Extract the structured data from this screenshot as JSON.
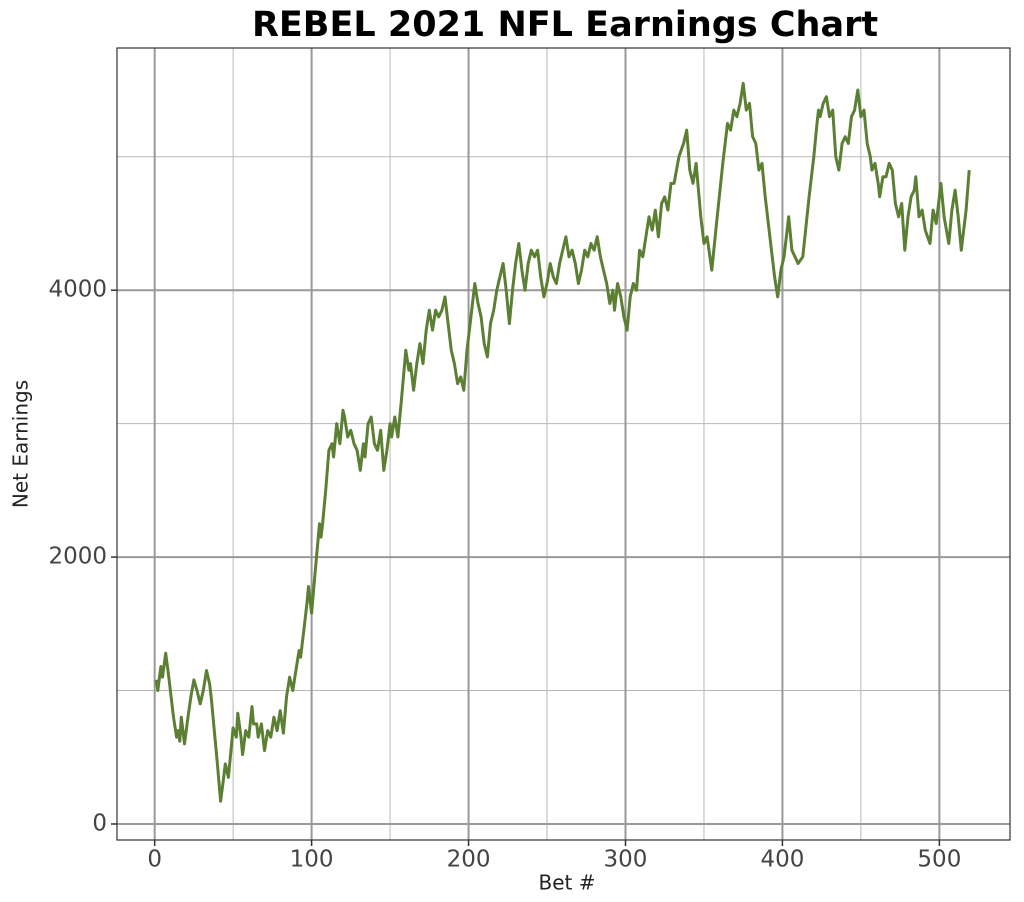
{
  "chart_data": {
    "type": "line",
    "title": "REBEL 2021 NFL Earnings Chart",
    "x_label": "Bet #",
    "y_label": "Net Earnings",
    "color": "#5b7f33",
    "grid": true,
    "xlim": [
      -24,
      545
    ],
    "ylim": [
      -120,
      5815
    ],
    "xticks": [
      0,
      100,
      200,
      300,
      400,
      500
    ],
    "yticks": [
      0,
      2000,
      4000
    ],
    "x_minor_grid": [
      50,
      150,
      250,
      350,
      450
    ],
    "y_minor_grid": [
      1000,
      3000,
      5000
    ],
    "x": [
      1,
      2,
      4,
      5,
      7,
      9,
      12,
      14,
      15,
      16,
      17,
      19,
      21,
      23,
      25,
      27,
      29,
      31,
      33,
      35,
      36,
      38,
      40,
      42,
      44,
      45,
      47,
      49,
      50,
      52,
      53,
      55,
      56,
      58,
      60,
      62,
      63,
      65,
      66,
      68,
      70,
      72,
      74,
      76,
      78,
      80,
      82,
      84,
      86,
      88,
      90,
      92,
      93,
      95,
      97,
      98,
      100,
      102,
      105,
      106,
      107,
      109,
      111,
      113,
      114,
      116,
      118,
      120,
      121,
      123,
      125,
      127,
      129,
      131,
      133,
      134,
      136,
      138,
      140,
      142,
      144,
      146,
      148,
      150,
      151,
      153,
      155,
      157,
      160,
      162,
      163,
      165,
      167,
      169,
      171,
      173,
      175,
      177,
      179,
      181,
      183,
      185,
      187,
      189,
      191,
      193,
      195,
      197,
      199,
      202,
      204,
      206,
      208,
      210,
      212,
      214,
      216,
      218,
      220,
      222,
      224,
      226,
      228,
      230,
      232,
      234,
      236,
      238,
      240,
      242,
      244,
      246,
      248,
      250,
      252,
      254,
      256,
      258,
      260,
      262,
      264,
      266,
      268,
      270,
      272,
      274,
      276,
      278,
      280,
      282,
      284,
      286,
      288,
      290,
      292,
      293,
      295,
      297,
      299,
      301,
      303,
      305,
      307,
      309,
      311,
      313,
      315,
      317,
      319,
      321,
      323,
      325,
      327,
      329,
      331,
      334,
      337,
      339,
      341,
      343,
      345,
      348,
      350,
      352,
      355,
      358,
      362,
      365,
      367,
      369,
      371,
      373,
      375,
      377,
      379,
      381,
      383,
      385,
      387,
      389,
      392,
      395,
      397,
      399,
      401,
      404,
      406,
      408,
      410,
      413,
      417,
      420,
      422,
      423,
      424,
      426,
      428,
      430,
      432,
      434,
      436,
      438,
      440,
      442,
      444,
      446,
      448,
      450,
      452,
      454,
      456,
      457,
      459,
      461,
      462,
      464,
      466,
      468,
      470,
      472,
      474,
      476,
      478,
      480,
      482,
      484,
      485,
      487,
      489,
      491,
      494,
      496,
      498,
      500,
      501,
      503,
      506,
      508,
      510,
      512,
      514,
      517,
      519
    ],
    "values": [
      1080,
      1000,
      1180,
      1100,
      1280,
      1100,
      800,
      650,
      700,
      620,
      800,
      600,
      780,
      950,
      1080,
      1000,
      900,
      1000,
      1150,
      1050,
      950,
      700,
      450,
      170,
      350,
      450,
      350,
      600,
      720,
      650,
      830,
      650,
      520,
      700,
      650,
      880,
      750,
      750,
      650,
      750,
      550,
      700,
      650,
      800,
      700,
      850,
      680,
      950,
      1100,
      1000,
      1150,
      1300,
      1250,
      1450,
      1650,
      1780,
      1580,
      1850,
      2250,
      2150,
      2250,
      2500,
      2800,
      2850,
      2750,
      3000,
      2850,
      3100,
      3050,
      2900,
      2950,
      2850,
      2800,
      2650,
      2850,
      2750,
      3000,
      3050,
      2850,
      2800,
      2950,
      2650,
      2800,
      3000,
      2900,
      3050,
      2900,
      3150,
      3550,
      3400,
      3450,
      3250,
      3450,
      3600,
      3450,
      3700,
      3850,
      3700,
      3850,
      3800,
      3850,
      3950,
      3750,
      3550,
      3450,
      3300,
      3350,
      3250,
      3550,
      3850,
      4050,
      3900,
      3800,
      3600,
      3500,
      3750,
      3850,
      4000,
      4100,
      4200,
      4000,
      3750,
      4000,
      4200,
      4350,
      4150,
      4000,
      4200,
      4300,
      4250,
      4300,
      4100,
      3950,
      4050,
      4200,
      4100,
      4050,
      4200,
      4300,
      4400,
      4250,
      4300,
      4200,
      4050,
      4150,
      4300,
      4250,
      4350,
      4300,
      4400,
      4250,
      4150,
      4050,
      3900,
      4000,
      3850,
      4050,
      3950,
      3800,
      3700,
      3950,
      4050,
      4000,
      4300,
      4250,
      4400,
      4550,
      4450,
      4600,
      4400,
      4650,
      4700,
      4600,
      4800,
      4800,
      5000,
      5100,
      5200,
      4900,
      4800,
      4950,
      4550,
      4350,
      4400,
      4150,
      4500,
      4950,
      5250,
      5200,
      5350,
      5300,
      5400,
      5550,
      5350,
      5400,
      5150,
      5100,
      4900,
      4950,
      4700,
      4400,
      4100,
      3950,
      4150,
      4250,
      4550,
      4300,
      4250,
      4200,
      4250,
      4700,
      5000,
      5250,
      5350,
      5300,
      5400,
      5450,
      5300,
      5350,
      5000,
      4900,
      5100,
      5150,
      5100,
      5300,
      5350,
      5500,
      5300,
      5350,
      5100,
      5000,
      4900,
      4950,
      4800,
      4700,
      4850,
      4850,
      4950,
      4900,
      4650,
      4550,
      4650,
      4300,
      4550,
      4700,
      4750,
      4850,
      4550,
      4600,
      4450,
      4350,
      4600,
      4500,
      4700,
      4800,
      4550,
      4350,
      4600,
      4750,
      4550,
      4300,
      4600,
      4900
    ]
  }
}
